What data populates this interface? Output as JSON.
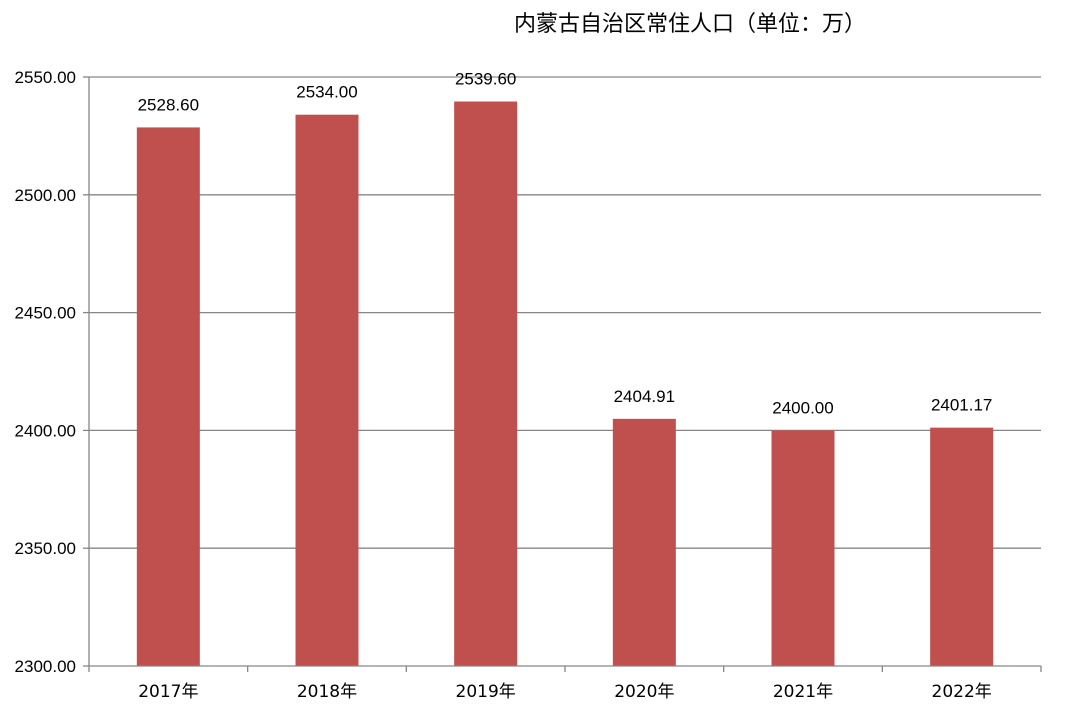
{
  "chart_data": {
    "type": "bar",
    "title": "内蒙古自治区常住人口（单位：万）",
    "categories": [
      "2017年",
      "2018年",
      "2019年",
      "2020年",
      "2021年",
      "2022年"
    ],
    "values": [
      2528.6,
      2534.0,
      2539.6,
      2404.91,
      2400.0,
      2401.17
    ],
    "value_labels": [
      "2528.60",
      "2534.00",
      "2539.60",
      "2404.91",
      "2400.00",
      "2401.17"
    ],
    "ylim": [
      2300,
      2550
    ],
    "yticks": [
      "2300.00",
      "2350.00",
      "2400.00",
      "2450.00",
      "2500.00",
      "2550.00"
    ],
    "xlabel": "",
    "ylabel": "",
    "grid": true,
    "legend": "none",
    "bar_color": "#C0504D",
    "grid_color": "#868686"
  }
}
